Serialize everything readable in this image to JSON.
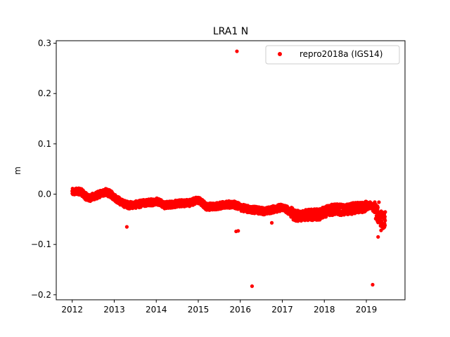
{
  "chart_data": {
    "type": "scatter",
    "title": "LRA1 N",
    "xlabel": "",
    "ylabel": "m",
    "xlim": [
      2011.62,
      2019.92
    ],
    "ylim": [
      -0.21,
      0.305
    ],
    "x_ticks": [
      2012,
      2013,
      2014,
      2015,
      2016,
      2017,
      2018,
      2019
    ],
    "y_ticks": [
      -0.2,
      -0.1,
      0.0,
      0.1,
      0.2,
      0.3
    ],
    "y_tick_labels": [
      "−0.2",
      "−0.1",
      "0.0",
      "0.1",
      "0.2",
      "0.3"
    ],
    "grid": false,
    "legend_position": "upper right",
    "series": [
      {
        "name": "repro2018a (IGS14)",
        "color": "#ff0000",
        "marker": "circle",
        "trend": [
          [
            2012.0,
            0.004
          ],
          [
            2012.1,
            0.005
          ],
          [
            2012.2,
            0.006
          ],
          [
            2012.3,
            -0.003
          ],
          [
            2012.4,
            -0.008
          ],
          [
            2012.5,
            -0.005
          ],
          [
            2012.6,
            -0.002
          ],
          [
            2012.7,
            0.002
          ],
          [
            2012.8,
            0.004
          ],
          [
            2012.9,
            0.001
          ],
          [
            2013.0,
            -0.006
          ],
          [
            2013.1,
            -0.012
          ],
          [
            2013.2,
            -0.018
          ],
          [
            2013.35,
            -0.022
          ],
          [
            2013.5,
            -0.021
          ],
          [
            2013.7,
            -0.018
          ],
          [
            2013.9,
            -0.016
          ],
          [
            2014.0,
            -0.014
          ],
          [
            2014.1,
            -0.016
          ],
          [
            2014.2,
            -0.022
          ],
          [
            2014.4,
            -0.02
          ],
          [
            2014.6,
            -0.018
          ],
          [
            2014.8,
            -0.017
          ],
          [
            2014.9,
            -0.014
          ],
          [
            2015.0,
            -0.012
          ],
          [
            2015.1,
            -0.018
          ],
          [
            2015.2,
            -0.025
          ],
          [
            2015.4,
            -0.024
          ],
          [
            2015.6,
            -0.022
          ],
          [
            2015.8,
            -0.02
          ],
          [
            2015.9,
            -0.022
          ],
          [
            2016.0,
            -0.026
          ],
          [
            2016.2,
            -0.03
          ],
          [
            2016.4,
            -0.032
          ],
          [
            2016.6,
            -0.034
          ],
          [
            2016.8,
            -0.03
          ],
          [
            2017.0,
            -0.026
          ],
          [
            2017.1,
            -0.03
          ],
          [
            2017.2,
            -0.036
          ],
          [
            2017.3,
            -0.043
          ],
          [
            2017.5,
            -0.042
          ],
          [
            2017.7,
            -0.041
          ],
          [
            2017.9,
            -0.04
          ],
          [
            2018.0,
            -0.036
          ],
          [
            2018.1,
            -0.032
          ],
          [
            2018.3,
            -0.03
          ],
          [
            2018.5,
            -0.032
          ],
          [
            2018.7,
            -0.028
          ],
          [
            2018.9,
            -0.026
          ],
          [
            2019.0,
            -0.025
          ],
          [
            2019.1,
            -0.022
          ],
          [
            2019.2,
            -0.03
          ],
          [
            2019.3,
            -0.045
          ],
          [
            2019.4,
            -0.052
          ],
          [
            2019.45,
            -0.05
          ]
        ],
        "outliers": [
          [
            2015.92,
            0.284
          ],
          [
            2013.3,
            -0.065
          ],
          [
            2015.9,
            -0.074
          ],
          [
            2015.95,
            -0.073
          ],
          [
            2016.28,
            -0.183
          ],
          [
            2016.75,
            -0.057
          ],
          [
            2019.15,
            -0.18
          ],
          [
            2019.28,
            -0.085
          ],
          [
            2019.3,
            -0.016
          ],
          [
            2019.35,
            -0.072
          ]
        ]
      }
    ]
  }
}
